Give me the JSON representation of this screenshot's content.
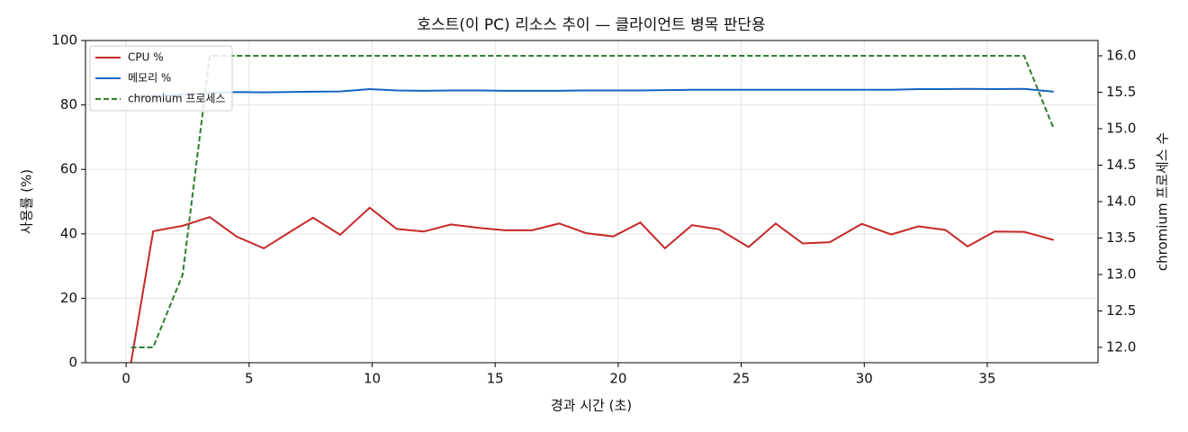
{
  "chart_data": {
    "type": "line",
    "title": "호스트(이 PC) 리소스 추이 — 클라이언트 병목 판단용",
    "x_label": "경과 시간 (초)",
    "y_label": "사용률 (%)",
    "y2_label": "chromium 프로세스 수",
    "x": [
      0.2,
      1.1,
      2.3,
      3.4,
      4.5,
      5.6,
      6.6,
      7.6,
      8.7,
      9.9,
      11.0,
      12.1,
      13.2,
      14.4,
      15.4,
      16.5,
      17.6,
      18.7,
      19.8,
      20.9,
      21.9,
      23.0,
      24.1,
      25.3,
      26.4,
      27.5,
      28.6,
      29.9,
      31.1,
      32.2,
      33.3,
      34.2,
      35.3,
      36.5,
      37.7
    ],
    "series": [
      {
        "name": "CPU %",
        "color": "#c62828",
        "dash": false,
        "values": [
          0,
          40.8,
          42.5,
          45.2,
          39.1,
          35.5,
          40.3,
          45.0,
          39.7,
          48.1,
          41.5,
          40.7,
          42.9,
          41.8,
          41.1,
          41.1,
          43.2,
          40.2,
          39.2,
          43.5,
          35.5,
          42.7,
          41.4,
          35.9,
          43.2,
          37.0,
          37.4,
          43.1,
          39.8,
          42.3,
          41.2,
          36.1,
          40.7,
          40.6,
          38.1
        ]
      },
      {
        "name": "메모리 %",
        "color": "#1565c0",
        "dash": false,
        "values": [
          82.5,
          82.8,
          83.2,
          83.7,
          84.0,
          83.9,
          84.0,
          84.1,
          84.2,
          84.9,
          84.5,
          84.4,
          84.5,
          84.5,
          84.4,
          84.4,
          84.4,
          84.5,
          84.5,
          84.5,
          84.6,
          84.7,
          84.7,
          84.7,
          84.7,
          84.7,
          84.7,
          84.7,
          84.7,
          84.9,
          84.9,
          85.0,
          84.9,
          85.0,
          84.1
        ]
      },
      {
        "name": "chromium 프로세스",
        "color": "#2e7d32",
        "dash": true,
        "axis": "y2",
        "values": [
          12,
          12,
          13,
          16,
          16,
          16,
          16,
          16,
          16,
          16,
          16,
          16,
          16,
          16,
          16,
          16,
          16,
          16,
          16,
          16,
          16,
          16,
          16,
          16,
          16,
          16,
          16,
          16,
          16,
          16,
          16,
          16,
          16,
          16,
          15
        ]
      }
    ],
    "xlim": [
      -1.65,
      39.5
    ],
    "xticks": [
      0,
      5,
      10,
      15,
      20,
      25,
      30,
      35
    ],
    "ylim": [
      0,
      100
    ],
    "yticks": [
      0,
      20,
      40,
      60,
      80,
      100
    ],
    "y2lim": [
      11.79,
      16.21
    ],
    "y2ticks": [
      {
        "value": 12,
        "label": "12.0"
      },
      {
        "value": 12.5,
        "label": "12.5"
      },
      {
        "value": 13,
        "label": "13.0"
      },
      {
        "value": 13.5,
        "label": "13.5"
      },
      {
        "value": 14,
        "label": "14.0"
      },
      {
        "value": 14.5,
        "label": "14.5"
      },
      {
        "value": 15,
        "label": "15.0"
      },
      {
        "value": 15.5,
        "label": "15.5"
      },
      {
        "value": 16,
        "label": "16.0"
      }
    ],
    "grid": true,
    "legend": "upper-left"
  }
}
